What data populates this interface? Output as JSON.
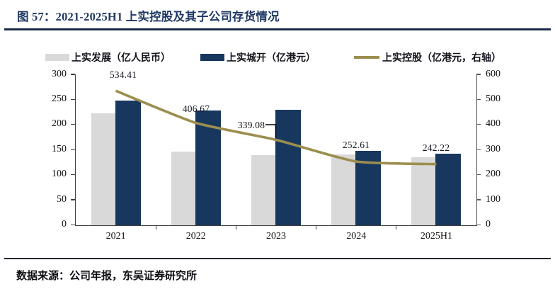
{
  "figure": {
    "title": "图 57：2021-2025H1 上实控股及其子公司存货情况",
    "source": "数据来源：公司年报，东吴证券研究所"
  },
  "accent": {
    "title_color": "#1f3864",
    "rule_color": "#1c2b4a"
  },
  "chart_data": {
    "type": "combo-bar-line",
    "categories": [
      "2021",
      "2022",
      "2023",
      "2024",
      "2025H1"
    ],
    "series": [
      {
        "name": "上实发展（亿人民币）",
        "type": "bar",
        "axis": "left",
        "color": "#d9d9d9",
        "values": [
          222,
          146,
          139,
          140,
          135
        ]
      },
      {
        "name": "上实城开（亿港元）",
        "type": "bar",
        "axis": "left",
        "color": "#17375e",
        "values": [
          248,
          228,
          229,
          148,
          142
        ]
      },
      {
        "name": "上实控股（亿港元，右轴）",
        "type": "line",
        "axis": "right",
        "color": "#9c8e4e",
        "values": [
          534.41,
          406.67,
          339.08,
          252.61,
          242.22
        ]
      }
    ],
    "point_labels": [
      "534.41",
      "406.67",
      "339.08",
      "252.61",
      "242.22"
    ],
    "left_axis": {
      "min": 0,
      "max": 300,
      "ticks": [
        "0",
        "50",
        "100",
        "150",
        "200",
        "250",
        "300"
      ]
    },
    "right_axis": {
      "min": 0,
      "max": 600,
      "ticks": [
        "0",
        "100",
        "200",
        "300",
        "400",
        "500",
        "600"
      ]
    },
    "grid": false,
    "legend_position": "top"
  }
}
